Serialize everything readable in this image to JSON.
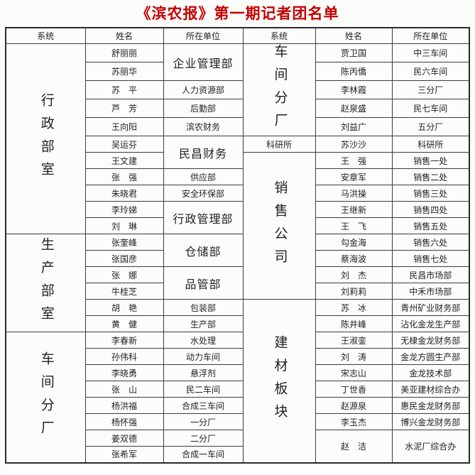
{
  "title": "《滨农报》第一期记者团名单",
  "title_color": "#c40000",
  "headers": {
    "system": "系统",
    "name": "姓名",
    "unit": "所在单位"
  },
  "left": {
    "sections": [
      {
        "label": "行政部室",
        "rows": 11
      },
      {
        "label": "生产部室",
        "rows": 6
      },
      {
        "label": "车间分厂",
        "rows": 8
      }
    ],
    "cells": [
      {
        "name": "舒丽丽",
        "unit": "企业管理部",
        "unit_span": 2,
        "unit_big": true
      },
      {
        "name": "苏丽华"
      },
      {
        "name": "苏　平",
        "unit": "人力资源部"
      },
      {
        "name": "芦　芳",
        "unit": "后勤部"
      },
      {
        "name": "王向阳",
        "unit": "滨农财务"
      },
      {
        "name": "吴运芬",
        "unit": "民昌财务",
        "unit_span": 2,
        "unit_big": true
      },
      {
        "name": "王文建"
      },
      {
        "name": "张　强",
        "unit": "供应部"
      },
      {
        "name": "朱晓君",
        "unit": "安全环保部"
      },
      {
        "name": "李玲娣",
        "unit": "行政管理部",
        "unit_span": 2,
        "unit_big": true
      },
      {
        "name": "刘　琳"
      },
      {
        "name": "张奎峰",
        "unit": "仓储部",
        "unit_span": 2,
        "unit_big": true
      },
      {
        "name": "张国彦"
      },
      {
        "name": "张　娜",
        "unit": "品管部",
        "unit_span": 2,
        "unit_big": true
      },
      {
        "name": "牛桂芝"
      },
      {
        "name": "胡　艳",
        "unit": "包装部"
      },
      {
        "name": "黄　健",
        "unit": "生产部"
      },
      {
        "name": "李春新",
        "unit": "水处理"
      },
      {
        "name": "孙伟科",
        "unit": "动力车间"
      },
      {
        "name": "李晓勇",
        "unit": "悬浮剂"
      },
      {
        "name": "张　山",
        "unit": "民二车间"
      },
      {
        "name": "杨洪福",
        "unit": "合成三车间"
      },
      {
        "name": "杨怀强",
        "unit": "一分厂"
      },
      {
        "name": "姜双德",
        "unit": "二分厂"
      },
      {
        "name": "张希军",
        "unit": "合成一车间"
      }
    ]
  },
  "right": {
    "sections": [
      {
        "label": "车间分厂",
        "rows": 5
      },
      {
        "label": "科研所",
        "rows": 1,
        "small": true
      },
      {
        "label": "销售公司",
        "rows": 9
      },
      {
        "label": "建材板块",
        "rows": 10
      }
    ],
    "cells": [
      {
        "name": "贾卫国",
        "unit": "中三车间"
      },
      {
        "name": "陈丙僑",
        "unit": "民六车间"
      },
      {
        "name": "李林霞",
        "unit": "三分厂"
      },
      {
        "name": "赵泉盛",
        "unit": "民七车间"
      },
      {
        "name": "刘益广",
        "unit": "五分厂"
      },
      {
        "name": "苏沙沙",
        "unit": "科研所"
      },
      {
        "name": "王　强",
        "unit": "销售一处"
      },
      {
        "name": "安章军",
        "unit": "销售二处"
      },
      {
        "name": "马洪操",
        "unit": "销售三处"
      },
      {
        "name": "王继新",
        "unit": "销售四处"
      },
      {
        "name": "王　飞",
        "unit": "销售五处"
      },
      {
        "name": "勾金海",
        "unit": "销售六处"
      },
      {
        "name": "蔡海波",
        "unit": "销售七处"
      },
      {
        "name": "刘　杰",
        "unit": "民昌市场部"
      },
      {
        "name": "刘莉莉",
        "unit": "中禾市场部"
      },
      {
        "name": "苏　冰",
        "unit": "青州矿业财务部"
      },
      {
        "name": "陈井峰",
        "unit": "沾化金龙生产部"
      },
      {
        "name": "王淑銮",
        "unit": "无棣金龙财务部"
      },
      {
        "name": "刘　涛",
        "unit": "金龙方圆生产部"
      },
      {
        "name": "宋志山",
        "unit": "金龙技术部"
      },
      {
        "name": "丁世香",
        "unit": "美亚建材综合办"
      },
      {
        "name": "赵源泉",
        "unit": "惠民金龙财务部"
      },
      {
        "name": "李玉杰",
        "unit": "博兴金龙财务部"
      },
      {
        "name": "赵　洁",
        "unit": "水泥厂综合办",
        "row_span": 2
      }
    ]
  }
}
